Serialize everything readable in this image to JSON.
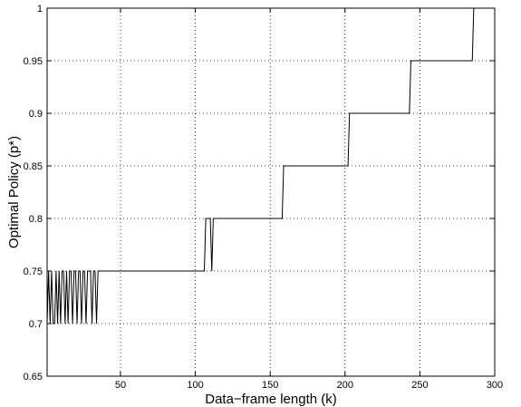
{
  "chart_data": {
    "type": "line",
    "title": "",
    "xlabel": "Data−frame length (k)",
    "ylabel": "Optimal Policy (p*)",
    "xlim": [
      1,
      300
    ],
    "ylim": [
      0.65,
      1
    ],
    "x_ticks": [
      50,
      100,
      150,
      200,
      250,
      300
    ],
    "x_tick_labels": [
      "50",
      "100",
      "150",
      "200",
      "250",
      "300"
    ],
    "y_ticks": [
      0.65,
      0.7,
      0.75,
      0.8,
      0.85,
      0.9,
      0.95,
      1
    ],
    "y_tick_labels": [
      "0.65",
      "0.7",
      "0.75",
      "0.8",
      "0.85",
      "0.9",
      "0.95",
      "1"
    ],
    "grid": true,
    "grid_style": "dotted",
    "line_color": "#000000",
    "series": [
      {
        "x": [
          1,
          2,
          3,
          4,
          5,
          6,
          7,
          8,
          9,
          10,
          11,
          12,
          13,
          14,
          15,
          16,
          17,
          18,
          19,
          20,
          21,
          22,
          23,
          24,
          25,
          26,
          27,
          28,
          29,
          30,
          31,
          32,
          33,
          34,
          35,
          106,
          107,
          108,
          109,
          110,
          111,
          112,
          113,
          158,
          159,
          202,
          203,
          243,
          244,
          285,
          286,
          287
        ],
        "y": [
          0.7,
          0.75,
          0.7,
          0.75,
          0.7,
          0.7,
          0.75,
          0.7,
          0.75,
          0.7,
          0.75,
          0.75,
          0.7,
          0.75,
          0.7,
          0.75,
          0.75,
          0.7,
          0.75,
          0.75,
          0.7,
          0.75,
          0.75,
          0.7,
          0.75,
          0.75,
          0.7,
          0.75,
          0.75,
          0.75,
          0.7,
          0.75,
          0.75,
          0.7,
          0.75,
          0.75,
          0.8,
          0.8,
          0.8,
          0.8,
          0.75,
          0.8,
          0.8,
          0.8,
          0.85,
          0.85,
          0.9,
          0.9,
          0.95,
          0.95,
          1,
          1
        ]
      }
    ]
  }
}
